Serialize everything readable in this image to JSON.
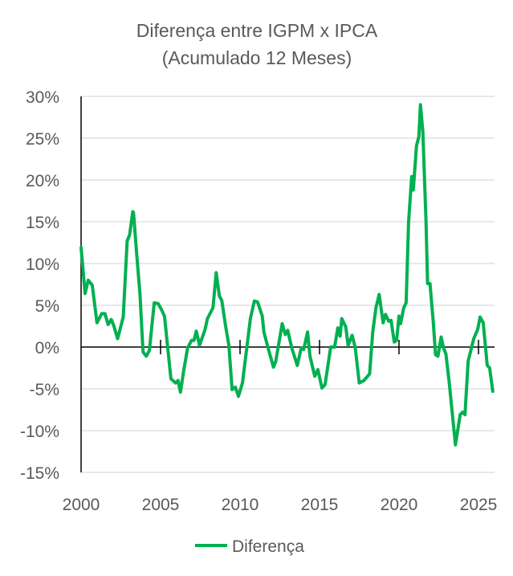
{
  "chart_data": {
    "type": "line",
    "title": "Diferença entre IGPM x IPCA",
    "subtitle": "(Acumulado 12 Meses)",
    "xlabel": "",
    "ylabel": "",
    "xlim": [
      2000,
      2025
    ],
    "ylim": [
      -15,
      30
    ],
    "x_ticks": [
      2000,
      2005,
      2010,
      2015,
      2020,
      2025
    ],
    "x_tick_labels": [
      "2000",
      "2005",
      "2010",
      "2015",
      "2020",
      "2025"
    ],
    "y_ticks": [
      30,
      25,
      20,
      15,
      10,
      5,
      0,
      -5,
      -10,
      -15
    ],
    "y_tick_labels": [
      "30%",
      "25%",
      "20%",
      "15%",
      "10%",
      "5%",
      "0%",
      "-5%",
      "-10%",
      "-15%"
    ],
    "grid": true,
    "legend_position": "bottom",
    "colors": {
      "series": "#00B050",
      "grid": "#D9D9D9",
      "axis": "#000000",
      "text": "#595959"
    },
    "series": [
      {
        "name": "Diferença",
        "x": [
          2000.0,
          2000.25,
          2000.45,
          2000.7,
          2001.0,
          2001.3,
          2001.5,
          2001.7,
          2001.9,
          2002.05,
          2002.3,
          2002.65,
          2002.9,
          2003.05,
          2003.25,
          2003.3,
          2003.5,
          2003.7,
          2003.9,
          2004.1,
          2004.3,
          2004.6,
          2004.85,
          2005.05,
          2005.25,
          2005.65,
          2005.95,
          2006.1,
          2006.25,
          2006.45,
          2006.7,
          2006.95,
          2007.1,
          2007.25,
          2007.45,
          2007.8,
          2007.95,
          2008.3,
          2008.5,
          2008.7,
          2008.85,
          2009.1,
          2009.3,
          2009.5,
          2009.7,
          2009.9,
          2010.15,
          2010.65,
          2010.9,
          2011.1,
          2011.4,
          2011.5,
          2011.75,
          2012.1,
          2012.25,
          2012.65,
          2012.85,
          2013.0,
          2013.25,
          2013.6,
          2013.85,
          2014.0,
          2014.25,
          2014.4,
          2014.7,
          2014.9,
          2015.15,
          2015.35,
          2015.7,
          2015.95,
          2016.15,
          2016.3,
          2016.4,
          2016.65,
          2016.8,
          2017.05,
          2017.25,
          2017.5,
          2017.8,
          2018.15,
          2018.35,
          2018.55,
          2018.75,
          2019.0,
          2019.15,
          2019.35,
          2019.5,
          2019.7,
          2019.85,
          2020.0,
          2020.1,
          2020.3,
          2020.45,
          2020.6,
          2020.8,
          2020.9,
          2021.1,
          2021.25,
          2021.35,
          2021.5,
          2021.7,
          2021.8,
          2021.95,
          2022.15,
          2022.3,
          2022.45,
          2022.65,
          2022.8,
          2022.95,
          2023.15,
          2023.55,
          2023.85,
          2024.0,
          2024.15,
          2024.35,
          2024.7,
          2024.95,
          2025.1,
          2025.3,
          2025.55,
          2025.7,
          2025.9
        ],
        "values": [
          11.9,
          6.4,
          8.0,
          7.4,
          2.9,
          4.0,
          4.0,
          2.7,
          3.3,
          2.6,
          1.0,
          3.6,
          12.7,
          13.4,
          16.2,
          16.1,
          11.1,
          6.4,
          -0.6,
          -1.1,
          -0.4,
          5.3,
          5.2,
          4.5,
          3.7,
          -3.8,
          -4.3,
          -4.0,
          -5.4,
          -2.9,
          -0.1,
          0.8,
          0.8,
          1.9,
          0.2,
          2.1,
          3.4,
          4.7,
          8.9,
          6.1,
          5.6,
          2.4,
          0.2,
          -5.1,
          -4.8,
          -5.9,
          -4.3,
          3.4,
          5.5,
          5.4,
          3.7,
          1.8,
          0.0,
          -2.4,
          -1.7,
          2.8,
          1.5,
          2.0,
          -0.1,
          -2.2,
          -0.1,
          -0.3,
          1.8,
          -1.1,
          -3.5,
          -2.7,
          -4.9,
          -4.5,
          0.0,
          0.0,
          2.3,
          1.3,
          3.4,
          2.4,
          0.2,
          1.4,
          -0.1,
          -4.3,
          -4.0,
          -3.2,
          1.8,
          4.7,
          6.3,
          2.9,
          3.9,
          3.1,
          3.2,
          0.6,
          0.8,
          3.7,
          2.8,
          4.7,
          5.3,
          14.9,
          20.4,
          18.8,
          24.1,
          25.2,
          29.0,
          25.8,
          14.9,
          7.6,
          7.6,
          3.1,
          -0.9,
          -1.1,
          1.2,
          -0.1,
          -0.8,
          -4.1,
          -11.7,
          -8.1,
          -7.8,
          -8.1,
          -1.7,
          1.0,
          2.1,
          3.6,
          2.9,
          -2.2,
          -2.5,
          -5.3
        ]
      }
    ]
  }
}
